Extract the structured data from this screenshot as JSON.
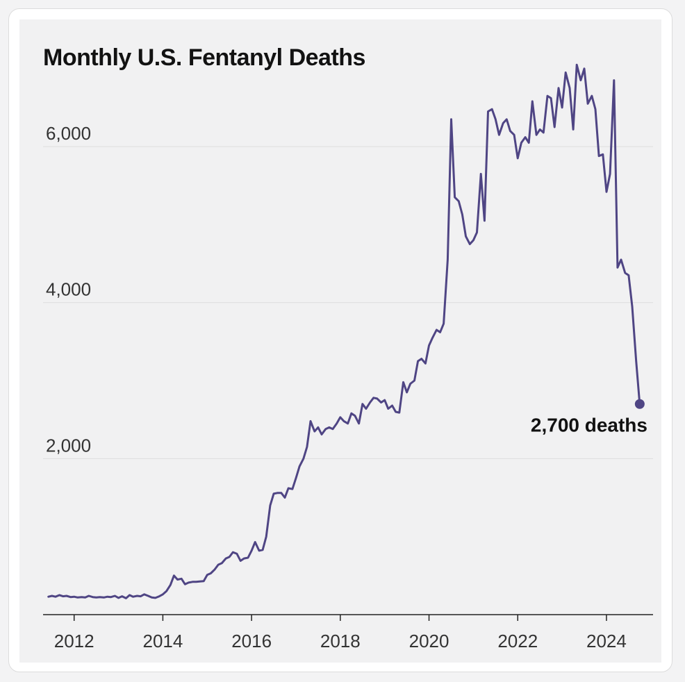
{
  "chart_data": {
    "type": "line",
    "title": "Monthly U.S. Fentanyl Deaths",
    "xlabel": "",
    "ylabel": "",
    "xlim": [
      2011.3,
      2025.05
    ],
    "ylim": [
      0,
      6900
    ],
    "yticks": [
      {
        "value": 2000,
        "label": "2,000"
      },
      {
        "value": 4000,
        "label": "4,000"
      },
      {
        "value": 6000,
        "label": "6,000"
      }
    ],
    "xticks": [
      {
        "value": 2012,
        "label": "2012"
      },
      {
        "value": 2014,
        "label": "2014"
      },
      {
        "value": 2016,
        "label": "2016"
      },
      {
        "value": 2018,
        "label": "2018"
      },
      {
        "value": 2020,
        "label": "2020"
      },
      {
        "value": 2022,
        "label": "2022"
      },
      {
        "value": 2024,
        "label": "2024"
      }
    ],
    "grid": "horizontal",
    "line_color": "#4f4584",
    "series": [
      {
        "points": [
          [
            2011.42,
            230
          ],
          [
            2011.5,
            240
          ],
          [
            2011.58,
            230
          ],
          [
            2011.67,
            250
          ],
          [
            2011.75,
            235
          ],
          [
            2011.83,
            240
          ],
          [
            2011.92,
            225
          ],
          [
            2012.0,
            230
          ],
          [
            2012.08,
            220
          ],
          [
            2012.17,
            225
          ],
          [
            2012.25,
            220
          ],
          [
            2012.33,
            240
          ],
          [
            2012.42,
            225
          ],
          [
            2012.5,
            220
          ],
          [
            2012.58,
            225
          ],
          [
            2012.67,
            220
          ],
          [
            2012.75,
            230
          ],
          [
            2012.83,
            225
          ],
          [
            2012.92,
            240
          ],
          [
            2013.0,
            215
          ],
          [
            2013.08,
            235
          ],
          [
            2013.17,
            210
          ],
          [
            2013.25,
            250
          ],
          [
            2013.33,
            230
          ],
          [
            2013.42,
            240
          ],
          [
            2013.5,
            235
          ],
          [
            2013.58,
            260
          ],
          [
            2013.67,
            240
          ],
          [
            2013.75,
            220
          ],
          [
            2013.83,
            215
          ],
          [
            2013.92,
            235
          ],
          [
            2014.0,
            260
          ],
          [
            2014.08,
            300
          ],
          [
            2014.17,
            380
          ],
          [
            2014.25,
            500
          ],
          [
            2014.33,
            450
          ],
          [
            2014.42,
            460
          ],
          [
            2014.5,
            390
          ],
          [
            2014.58,
            410
          ],
          [
            2014.67,
            420
          ],
          [
            2014.75,
            420
          ],
          [
            2014.83,
            425
          ],
          [
            2014.92,
            430
          ],
          [
            2015.0,
            510
          ],
          [
            2015.08,
            530
          ],
          [
            2015.17,
            580
          ],
          [
            2015.25,
            640
          ],
          [
            2015.33,
            660
          ],
          [
            2015.42,
            720
          ],
          [
            2015.5,
            740
          ],
          [
            2015.58,
            800
          ],
          [
            2015.67,
            780
          ],
          [
            2015.75,
            690
          ],
          [
            2015.83,
            720
          ],
          [
            2015.92,
            730
          ],
          [
            2016.0,
            820
          ],
          [
            2016.08,
            930
          ],
          [
            2016.17,
            820
          ],
          [
            2016.25,
            830
          ],
          [
            2016.33,
            1000
          ],
          [
            2016.42,
            1400
          ],
          [
            2016.5,
            1550
          ],
          [
            2016.58,
            1560
          ],
          [
            2016.67,
            1560
          ],
          [
            2016.75,
            1500
          ],
          [
            2016.83,
            1620
          ],
          [
            2016.92,
            1610
          ],
          [
            2017.0,
            1750
          ],
          [
            2017.08,
            1900
          ],
          [
            2017.17,
            2000
          ],
          [
            2017.25,
            2150
          ],
          [
            2017.33,
            2480
          ],
          [
            2017.42,
            2350
          ],
          [
            2017.5,
            2400
          ],
          [
            2017.58,
            2310
          ],
          [
            2017.67,
            2380
          ],
          [
            2017.75,
            2400
          ],
          [
            2017.83,
            2380
          ],
          [
            2017.92,
            2450
          ],
          [
            2018.0,
            2530
          ],
          [
            2018.08,
            2480
          ],
          [
            2018.17,
            2450
          ],
          [
            2018.25,
            2580
          ],
          [
            2018.33,
            2550
          ],
          [
            2018.42,
            2450
          ],
          [
            2018.5,
            2700
          ],
          [
            2018.58,
            2640
          ],
          [
            2018.67,
            2720
          ],
          [
            2018.75,
            2780
          ],
          [
            2018.83,
            2770
          ],
          [
            2018.92,
            2720
          ],
          [
            2019.0,
            2750
          ],
          [
            2019.08,
            2640
          ],
          [
            2019.17,
            2680
          ],
          [
            2019.25,
            2600
          ],
          [
            2019.33,
            2590
          ],
          [
            2019.42,
            2980
          ],
          [
            2019.5,
            2850
          ],
          [
            2019.58,
            2960
          ],
          [
            2019.67,
            3000
          ],
          [
            2019.75,
            3250
          ],
          [
            2019.83,
            3280
          ],
          [
            2019.92,
            3220
          ],
          [
            2020.0,
            3450
          ],
          [
            2020.08,
            3550
          ],
          [
            2020.17,
            3650
          ],
          [
            2020.25,
            3620
          ],
          [
            2020.33,
            3730
          ],
          [
            2020.42,
            4550
          ],
          [
            2020.5,
            6350
          ],
          [
            2020.58,
            5350
          ],
          [
            2020.67,
            5300
          ],
          [
            2020.75,
            5130
          ],
          [
            2020.83,
            4850
          ],
          [
            2020.92,
            4750
          ],
          [
            2021.0,
            4800
          ],
          [
            2021.08,
            4900
          ],
          [
            2021.17,
            5650
          ],
          [
            2021.25,
            5050
          ],
          [
            2021.33,
            6450
          ],
          [
            2021.42,
            6480
          ],
          [
            2021.5,
            6350
          ],
          [
            2021.58,
            6150
          ],
          [
            2021.67,
            6300
          ],
          [
            2021.75,
            6350
          ],
          [
            2021.83,
            6200
          ],
          [
            2021.92,
            6150
          ],
          [
            2022.0,
            5850
          ],
          [
            2022.08,
            6050
          ],
          [
            2022.17,
            6120
          ],
          [
            2022.25,
            6050
          ],
          [
            2022.33,
            6580
          ],
          [
            2022.42,
            6150
          ],
          [
            2022.5,
            6220
          ],
          [
            2022.58,
            6180
          ],
          [
            2022.67,
            6650
          ],
          [
            2022.75,
            6620
          ],
          [
            2022.83,
            6250
          ],
          [
            2022.92,
            6750
          ],
          [
            2023.0,
            6500
          ],
          [
            2023.08,
            6950
          ],
          [
            2023.17,
            6750
          ],
          [
            2023.25,
            6220
          ],
          [
            2023.33,
            7050
          ],
          [
            2023.42,
            6850
          ],
          [
            2023.5,
            7000
          ],
          [
            2023.58,
            6550
          ],
          [
            2023.67,
            6650
          ],
          [
            2023.75,
            6480
          ],
          [
            2023.83,
            5880
          ],
          [
            2023.92,
            5900
          ],
          [
            2024.0,
            5420
          ],
          [
            2024.08,
            5650
          ],
          [
            2024.17,
            6850
          ],
          [
            2024.25,
            4450
          ],
          [
            2024.33,
            4550
          ],
          [
            2024.42,
            4380
          ],
          [
            2024.5,
            4350
          ],
          [
            2024.58,
            3950
          ],
          [
            2024.67,
            3250
          ],
          [
            2024.75,
            2700
          ]
        ]
      }
    ],
    "annotation": {
      "x": 2024.75,
      "y": 2700,
      "label": "2,700 deaths"
    }
  }
}
